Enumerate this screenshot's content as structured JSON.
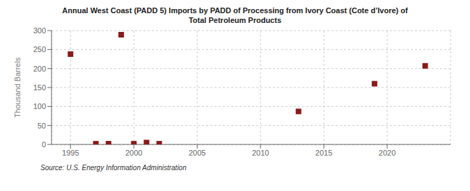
{
  "chart_data": {
    "type": "scatter",
    "title": "Annual West Coast (PADD 5) Imports by PADD of Processing from Ivory Coast (Cote d’Ivore) of\nTotal Petroleum Products",
    "ylabel": "Thousand Barrels",
    "annotations": [
      "Source: U.S. Energy Information Administration"
    ],
    "x": [
      1995,
      1997,
      1998,
      1999,
      2000,
      2001,
      2002,
      2013,
      2019,
      2023
    ],
    "values": [
      238,
      2,
      2,
      289,
      2,
      5,
      2,
      87,
      160,
      207
    ],
    "color": "#8b1a1a",
    "marker": "square",
    "xlim": [
      1993.5,
      2025
    ],
    "xticks": [
      1995,
      2000,
      2005,
      2010,
      2015,
      2020
    ],
    "ylim": [
      0,
      300
    ],
    "yticks": [
      0,
      50,
      100,
      150,
      200,
      250,
      300
    ],
    "grid": true
  }
}
